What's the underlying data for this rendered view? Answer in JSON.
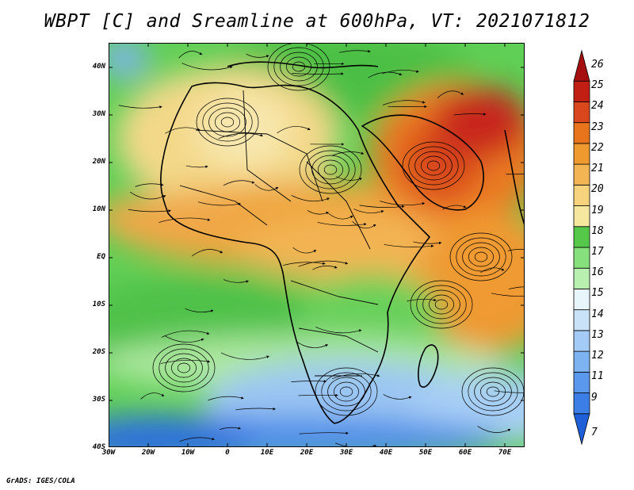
{
  "title": "WBPT [C] and Sreamline at 600hPa, VT: 2021071812",
  "credit": "GrADS: IGES/COLA",
  "map": {
    "lon_labels": [
      "30W",
      "20W",
      "10W",
      "0",
      "10E",
      "20E",
      "30E",
      "40E",
      "50E",
      "60E",
      "70E"
    ],
    "lat_labels": [
      "40N",
      "30N",
      "20N",
      "10N",
      "EQ",
      "10S",
      "20S",
      "30S",
      "40S"
    ],
    "lon_range": [
      -30,
      75
    ],
    "lat_range": [
      -40,
      45
    ]
  },
  "colorbar": {
    "levels": [
      "7",
      "9",
      "11",
      "12",
      "13",
      "14",
      "15",
      "16",
      "17",
      "18",
      "19",
      "20",
      "21",
      "22",
      "23",
      "24",
      "25",
      "26"
    ],
    "colors": [
      "#1f60d8",
      "#3a7ee6",
      "#5a98ee",
      "#7eb3f2",
      "#a3cbf5",
      "#c9e2f8",
      "#e8f5fb",
      "#b8f0b0",
      "#86e07c",
      "#55c84a",
      "#f5e79e",
      "#f6d37c",
      "#f3b453",
      "#ee9a2e",
      "#e8741c",
      "#d9481c",
      "#c21f14",
      "#a50f0f"
    ]
  }
}
